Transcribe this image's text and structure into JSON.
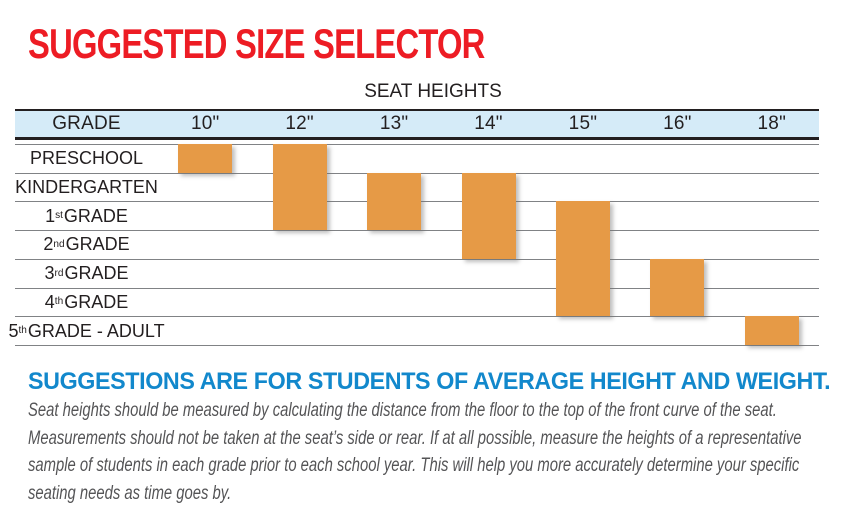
{
  "title": "SUGGESTED SIZE SELECTOR",
  "note": "SUGGESTIONS ARE FOR STUDENTS OF AVERAGE HEIGHT AND WEIGHT.",
  "footnote": {
    "lines": [
      "Seat heights should be measured by calculating the distance from the floor to the top of the front curve of the seat.",
      "Measurements should not be taken at the seat’s side or rear.  If at all possible, measure the heights of a representative",
      "sample of students in each grade prior to each school year.  This will help you more accurately determine your specific",
      "seating needs as time goes by."
    ]
  },
  "colors": {
    "title_red": "#ED1C24",
    "note_blue": "#1288CC",
    "header_band_blue": "#D5EBF8",
    "bar_orange": "#E69A46",
    "line_dark": "#231F20",
    "line_gray": "#808285",
    "footnote_gray": "#545456"
  },
  "chart_data": {
    "type": "table",
    "title": "SUGGESTED SIZE SELECTOR",
    "column_group_label": "SEAT HEIGHTS",
    "row_header_label": "GRADE",
    "columns": [
      "10\"",
      "12\"",
      "13\"",
      "14\"",
      "15\"",
      "16\"",
      "18\""
    ],
    "rows": [
      "PRESCHOOL",
      "KINDERGARTEN",
      "1st GRADE",
      "2nd GRADE",
      "3rd GRADE",
      "4th GRADE",
      "5th GRADE - ADULT"
    ],
    "bars": [
      {
        "column": "10\"",
        "col_index": 0,
        "row_start": 0,
        "row_end": 0
      },
      {
        "column": "12\"",
        "col_index": 1,
        "row_start": 0,
        "row_end": 2
      },
      {
        "column": "13\"",
        "col_index": 2,
        "row_start": 1,
        "row_end": 2
      },
      {
        "column": "14\"",
        "col_index": 3,
        "row_start": 1,
        "row_end": 3
      },
      {
        "column": "15\"",
        "col_index": 4,
        "row_start": 2,
        "row_end": 5
      },
      {
        "column": "16\"",
        "col_index": 5,
        "row_start": 4,
        "row_end": 5
      },
      {
        "column": "18\"",
        "col_index": 6,
        "row_start": 6,
        "row_end": 6
      }
    ],
    "legend": "off",
    "grid": "horizontal row separators"
  }
}
